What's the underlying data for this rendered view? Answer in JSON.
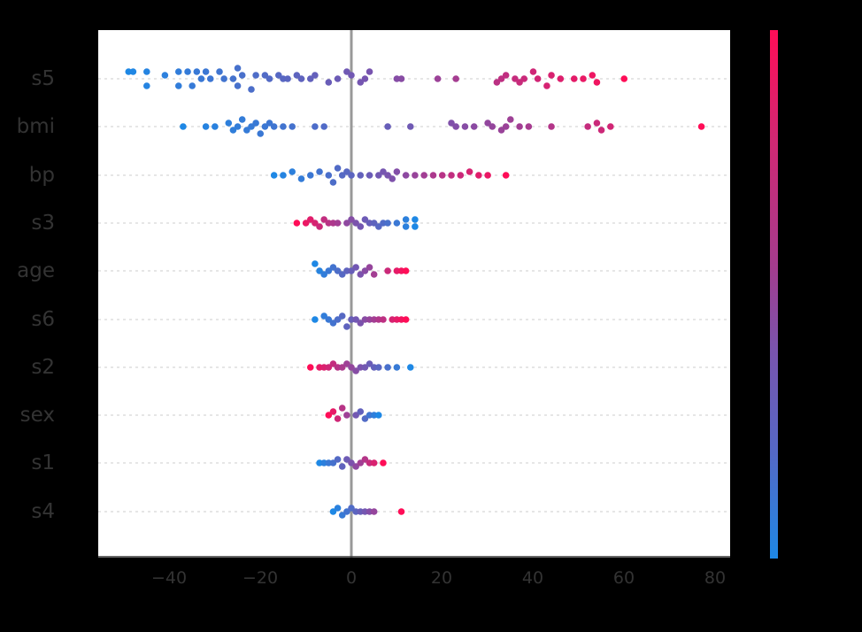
{
  "chart_data": {
    "type": "scatter",
    "subtype": "shap-beeswarm-summary",
    "title": "",
    "xlabel": "",
    "ylabel": "",
    "xlim": [
      -55,
      84
    ],
    "x_ticks": [
      -40,
      -20,
      0,
      20,
      40,
      60,
      80
    ],
    "x_tick_labels": [
      "−40",
      "−20",
      "0",
      "20",
      "40",
      "60",
      "80"
    ],
    "features": [
      "s5",
      "bmi",
      "bp",
      "s3",
      "age",
      "s6",
      "s2",
      "sex",
      "s1",
      "s4"
    ],
    "colorbar": {
      "low_color": "#1e88e5",
      "high_color": "#ff0d57",
      "label": ""
    },
    "zero_line": true,
    "series": [
      {
        "name": "s5",
        "points": [
          [
            -49,
            0.2
          ],
          [
            -48,
            0.2
          ],
          [
            -45,
            -0.2
          ],
          [
            -45,
            0.2
          ],
          [
            -41,
            0.1
          ],
          [
            -38,
            -0.2
          ],
          [
            -38,
            0.2
          ],
          [
            -36,
            0.2
          ],
          [
            -35,
            -0.2
          ],
          [
            -34,
            0.2
          ],
          [
            -33,
            0
          ],
          [
            -32,
            0.2
          ],
          [
            -31,
            0
          ],
          [
            -29,
            0.2
          ],
          [
            -28,
            0
          ],
          [
            -26,
            0
          ],
          [
            -25,
            0.3
          ],
          [
            -25,
            -0.2
          ],
          [
            -24,
            0.1
          ],
          [
            -22,
            -0.3
          ],
          [
            -21,
            0.1
          ],
          [
            -19,
            0.1
          ],
          [
            -18,
            0
          ],
          [
            -16,
            0.1
          ],
          [
            -15,
            0
          ],
          [
            -14,
            0
          ],
          [
            -12,
            0.1
          ],
          [
            -11,
            0
          ],
          [
            -9,
            0
          ],
          [
            -8,
            0.1
          ],
          [
            -5,
            -0.1
          ],
          [
            -3,
            0
          ],
          [
            -1,
            0.2
          ],
          [
            0,
            0.1
          ],
          [
            2,
            -0.1
          ],
          [
            3,
            0
          ],
          [
            4,
            0.2
          ],
          [
            10,
            0
          ],
          [
            11,
            0
          ],
          [
            19,
            0
          ],
          [
            23,
            0
          ],
          [
            32,
            -0.1
          ],
          [
            33,
            0
          ],
          [
            34,
            0.1
          ],
          [
            36,
            0
          ],
          [
            37,
            -0.1
          ],
          [
            38,
            0
          ],
          [
            40,
            0.2
          ],
          [
            41,
            0
          ],
          [
            43,
            -0.2
          ],
          [
            44,
            0.1
          ],
          [
            46,
            0
          ],
          [
            49,
            0
          ],
          [
            51,
            0
          ],
          [
            53,
            0.1
          ],
          [
            54,
            -0.1
          ],
          [
            60,
            0
          ]
        ]
      },
      {
        "name": "bmi",
        "points": [
          [
            -37,
            0
          ],
          [
            -32,
            0
          ],
          [
            -30,
            0
          ],
          [
            -27,
            0.1
          ],
          [
            -26,
            -0.1
          ],
          [
            -25,
            0
          ],
          [
            -24,
            0.2
          ],
          [
            -23,
            -0.1
          ],
          [
            -22,
            0
          ],
          [
            -21,
            0.1
          ],
          [
            -20,
            -0.2
          ],
          [
            -19,
            0
          ],
          [
            -18,
            0.1
          ],
          [
            -17,
            0
          ],
          [
            -15,
            0
          ],
          [
            -13,
            0
          ],
          [
            -8,
            0
          ],
          [
            -6,
            0
          ],
          [
            8,
            0
          ],
          [
            13,
            0
          ],
          [
            22,
            0.1
          ],
          [
            23,
            0
          ],
          [
            25,
            0
          ],
          [
            27,
            0
          ],
          [
            30,
            0.1
          ],
          [
            31,
            0
          ],
          [
            33,
            -0.1
          ],
          [
            34,
            0
          ],
          [
            35,
            0.2
          ],
          [
            37,
            0
          ],
          [
            39,
            0
          ],
          [
            44,
            0
          ],
          [
            52,
            0
          ],
          [
            54,
            0.1
          ],
          [
            55,
            -0.1
          ],
          [
            57,
            0
          ],
          [
            77,
            0
          ]
        ]
      },
      {
        "name": "bp",
        "points": [
          [
            -17,
            0
          ],
          [
            -15,
            0
          ],
          [
            -13,
            0.1
          ],
          [
            -11,
            -0.1
          ],
          [
            -9,
            0
          ],
          [
            -7,
            0.1
          ],
          [
            -5,
            0
          ],
          [
            -4,
            -0.2
          ],
          [
            -3,
            0.2
          ],
          [
            -2,
            0
          ],
          [
            -1,
            0.1
          ],
          [
            0,
            0
          ],
          [
            2,
            0
          ],
          [
            4,
            0
          ],
          [
            6,
            0
          ],
          [
            7,
            0.1
          ],
          [
            8,
            0
          ],
          [
            9,
            -0.1
          ],
          [
            10,
            0.1
          ],
          [
            12,
            0
          ],
          [
            14,
            0
          ],
          [
            16,
            0
          ],
          [
            18,
            0
          ],
          [
            20,
            0
          ],
          [
            22,
            0
          ],
          [
            24,
            0
          ],
          [
            26,
            0.1
          ],
          [
            28,
            0
          ],
          [
            30,
            0
          ],
          [
            34,
            0
          ]
        ]
      },
      {
        "name": "s3",
        "points": [
          [
            -12,
            0
          ],
          [
            -10,
            0
          ],
          [
            -9,
            0.1
          ],
          [
            -8,
            0
          ],
          [
            -7,
            -0.1
          ],
          [
            -6,
            0.1
          ],
          [
            -5,
            0
          ],
          [
            -4,
            0
          ],
          [
            -3,
            0
          ],
          [
            -1,
            0
          ],
          [
            0,
            0.1
          ],
          [
            1,
            0
          ],
          [
            2,
            -0.1
          ],
          [
            3,
            0.1
          ],
          [
            4,
            0
          ],
          [
            5,
            0
          ],
          [
            6,
            -0.1
          ],
          [
            7,
            0
          ],
          [
            8,
            0
          ],
          [
            10,
            0
          ],
          [
            12,
            0.1
          ],
          [
            12,
            -0.1
          ],
          [
            14,
            0.1
          ],
          [
            14,
            -0.1
          ]
        ]
      },
      {
        "name": "age",
        "points": [
          [
            -8,
            0.2
          ],
          [
            -7,
            0
          ],
          [
            -6,
            -0.1
          ],
          [
            -5,
            0
          ],
          [
            -4,
            0.1
          ],
          [
            -3,
            0
          ],
          [
            -2,
            -0.1
          ],
          [
            -1,
            0
          ],
          [
            0,
            0
          ],
          [
            1,
            0.1
          ],
          [
            2,
            -0.1
          ],
          [
            3,
            0
          ],
          [
            4,
            0.1
          ],
          [
            5,
            -0.1
          ],
          [
            8,
            0
          ],
          [
            10,
            0
          ],
          [
            11,
            0
          ],
          [
            12,
            0
          ]
        ]
      },
      {
        "name": "s6",
        "points": [
          [
            -8,
            0
          ],
          [
            -6,
            0.1
          ],
          [
            -5,
            0
          ],
          [
            -4,
            -0.1
          ],
          [
            -3,
            0
          ],
          [
            -2,
            0.1
          ],
          [
            -1,
            -0.2
          ],
          [
            0,
            0
          ],
          [
            1,
            0
          ],
          [
            2,
            -0.1
          ],
          [
            3,
            0
          ],
          [
            4,
            0
          ],
          [
            5,
            0
          ],
          [
            6,
            0
          ],
          [
            7,
            0
          ],
          [
            9,
            0
          ],
          [
            10,
            0
          ],
          [
            11,
            0
          ],
          [
            12,
            0
          ]
        ]
      },
      {
        "name": "s2",
        "points": [
          [
            -9,
            0
          ],
          [
            -7,
            0
          ],
          [
            -6,
            0
          ],
          [
            -5,
            0
          ],
          [
            -4,
            0.1
          ],
          [
            -3,
            0
          ],
          [
            -2,
            0
          ],
          [
            -1,
            0.1
          ],
          [
            0,
            0
          ],
          [
            1,
            -0.1
          ],
          [
            2,
            0
          ],
          [
            3,
            0
          ],
          [
            4,
            0.1
          ],
          [
            5,
            0
          ],
          [
            6,
            0
          ],
          [
            8,
            0
          ],
          [
            10,
            0
          ],
          [
            13,
            0
          ]
        ]
      },
      {
        "name": "sex",
        "points": [
          [
            -5,
            0
          ],
          [
            -4,
            0.1
          ],
          [
            -3,
            -0.1
          ],
          [
            -2,
            0.2
          ],
          [
            -1,
            0
          ],
          [
            1,
            0
          ],
          [
            2,
            0.1
          ],
          [
            3,
            -0.1
          ],
          [
            4,
            0
          ],
          [
            5,
            0
          ],
          [
            6,
            0
          ]
        ]
      },
      {
        "name": "s1",
        "points": [
          [
            -7,
            0
          ],
          [
            -6,
            0
          ],
          [
            -5,
            0
          ],
          [
            -4,
            0
          ],
          [
            -3,
            0.1
          ],
          [
            -2,
            -0.1
          ],
          [
            -1,
            0.1
          ],
          [
            0,
            0
          ],
          [
            1,
            -0.1
          ],
          [
            2,
            0
          ],
          [
            3,
            0.1
          ],
          [
            4,
            0
          ],
          [
            5,
            0
          ],
          [
            7,
            0
          ]
        ]
      },
      {
        "name": "s4",
        "points": [
          [
            -4,
            0
          ],
          [
            -3,
            0.1
          ],
          [
            -2,
            -0.1
          ],
          [
            -1,
            0
          ],
          [
            0,
            0.1
          ],
          [
            1,
            0
          ],
          [
            2,
            0
          ],
          [
            3,
            0
          ],
          [
            4,
            0
          ],
          [
            5,
            0
          ],
          [
            11,
            0
          ]
        ]
      }
    ]
  },
  "axis": {
    "y_labels": [
      "s5",
      "bmi",
      "bp",
      "s3",
      "age",
      "s6",
      "s2",
      "sex",
      "s1",
      "s4"
    ],
    "x_tick_labels": [
      "−40",
      "−20",
      "0",
      "20",
      "40",
      "60",
      "80"
    ]
  },
  "colors": {
    "low": "#1e88e5",
    "mid": "#7b53ad",
    "high": "#ff0d57",
    "axis_text": "#333333",
    "zero_line": "#999999",
    "grid": "#cccccc"
  }
}
